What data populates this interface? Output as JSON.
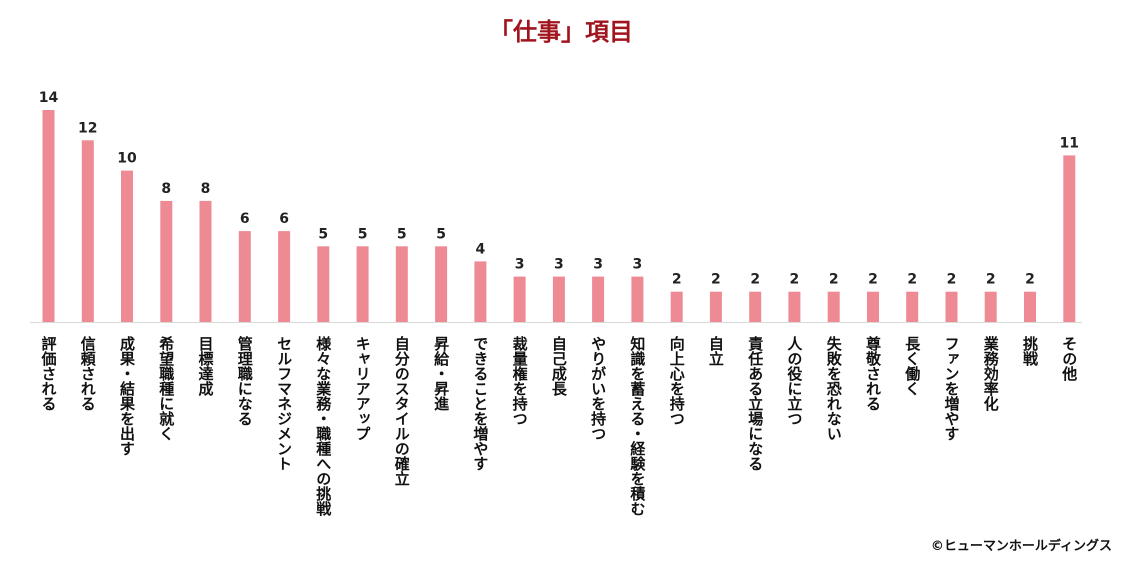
{
  "chart_data": {
    "type": "bar",
    "title": "「仕事」項目",
    "xlabel": "",
    "ylabel": "",
    "ylim": [
      0,
      14
    ],
    "grid": false,
    "legend": "none",
    "bar_color": "#ee8a93",
    "title_color": "#a0141e",
    "categories": [
      "評価される",
      "信頼される",
      "成果・結果を出す",
      "希望職種に就く",
      "目標達成",
      "管理職になる",
      "セルフマネジメント",
      "様々な業務・職種への挑戦",
      "キャリアアップ",
      "自分のスタイルの確立",
      "昇給・昇進",
      "できることを増やす",
      "裁量権を持つ",
      "自己成長",
      "やりがいを持つ",
      "知識を蓄える・経験を積む",
      "向上心を持つ",
      "自立",
      "責任ある立場になる",
      "人の役に立つ",
      "失敗を恐れない",
      "尊敬される",
      "長く働く",
      "ファンを増やす",
      "業務効率化",
      "挑戦",
      "その他"
    ],
    "values": [
      14,
      12,
      10,
      8,
      8,
      6,
      6,
      5,
      5,
      5,
      5,
      4,
      3,
      3,
      3,
      3,
      2,
      2,
      2,
      2,
      2,
      2,
      2,
      2,
      2,
      2,
      11
    ]
  },
  "copyright": "©ヒューマンホールディングス"
}
